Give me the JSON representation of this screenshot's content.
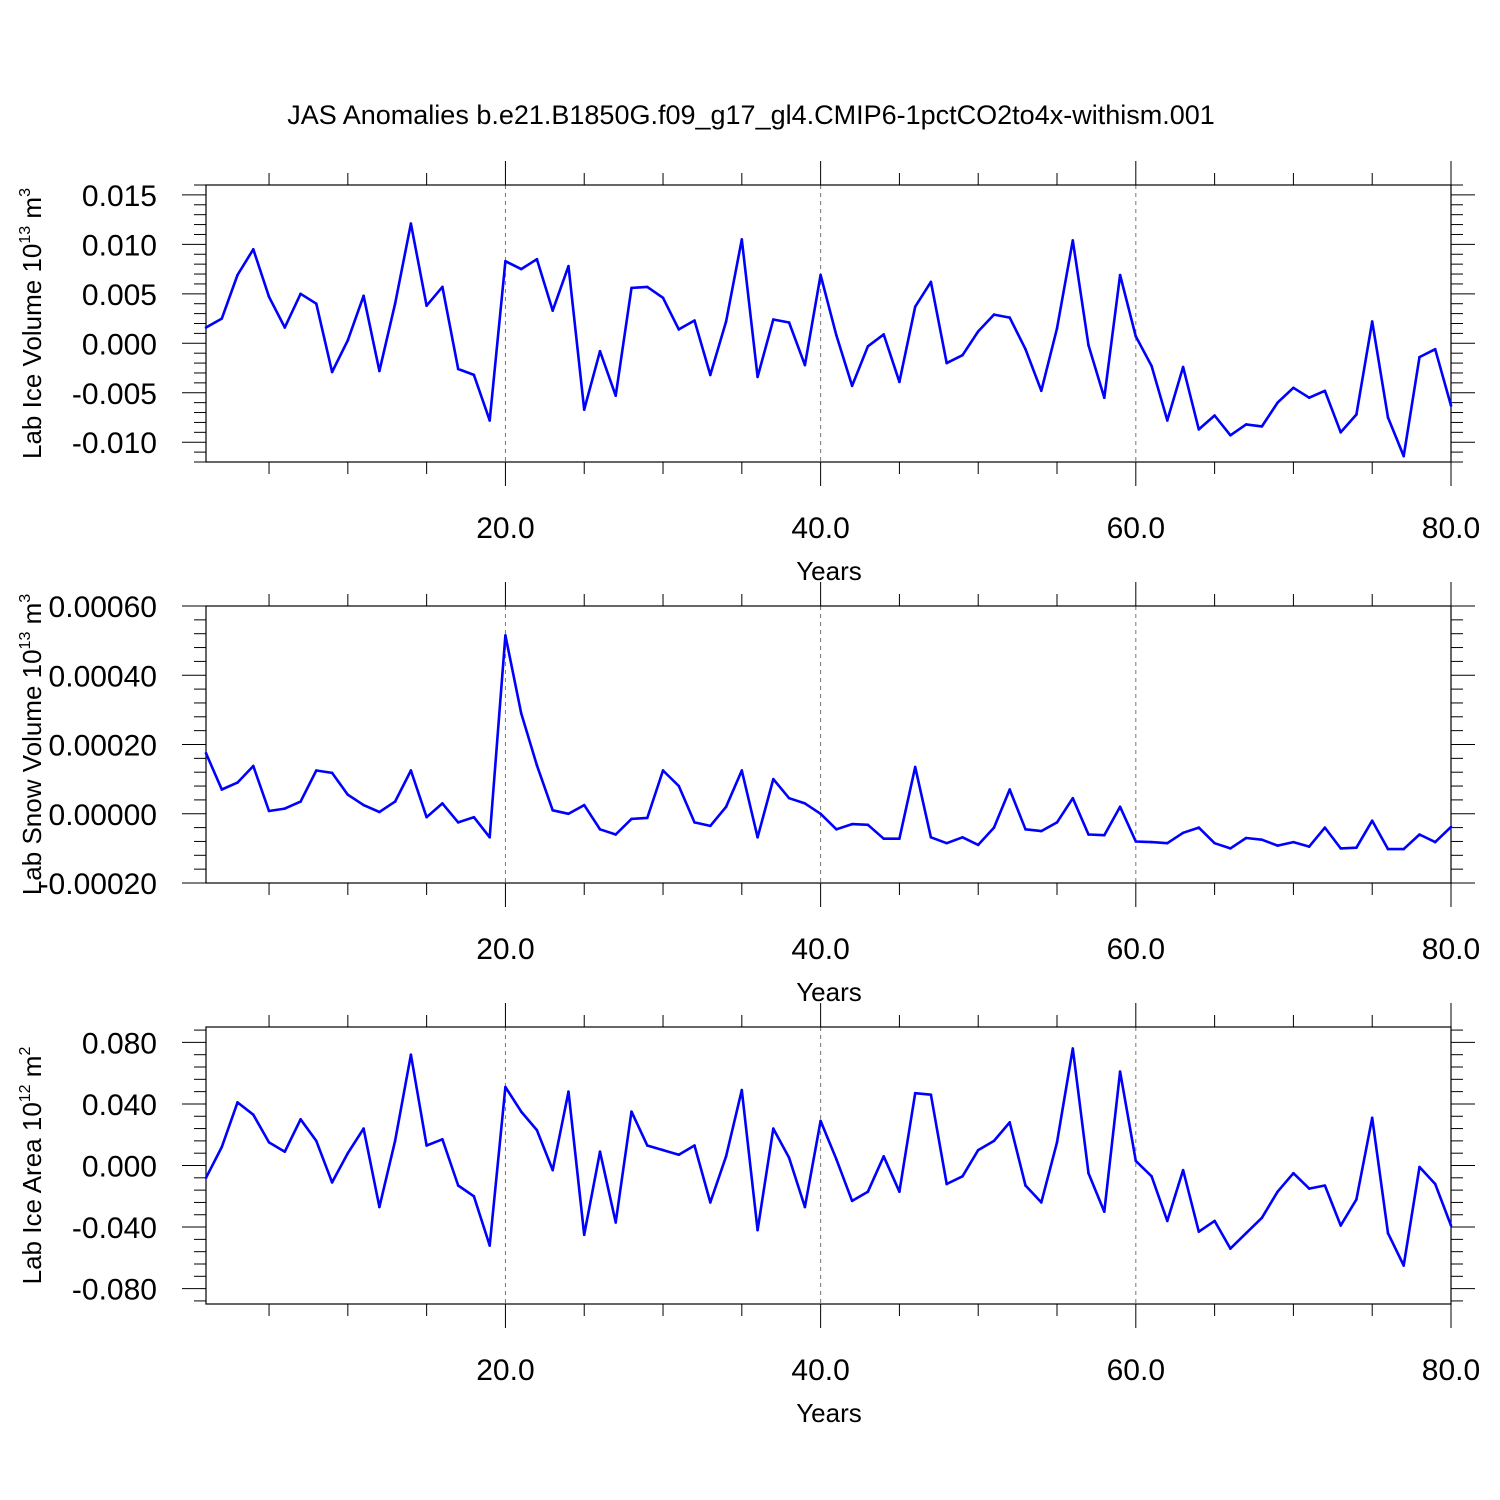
{
  "title": "JAS Anomalies b.e21.B1850G.f09_g17_gl4.CMIP6-1pctCO2to4x-withism.001",
  "chart_data": [
    {
      "type": "line",
      "xlabel": "Years",
      "ylabel": "Lab Ice Volume 10",
      "ylabel_exp": "13",
      "ylabel_unit": " m",
      "ylabel_unit_exp": "3",
      "xlim": [
        1,
        80
      ],
      "ylim": [
        -0.012,
        0.016
      ],
      "xticks": [
        20,
        40,
        60,
        80
      ],
      "xtick_labels": [
        "20.0",
        "40.0",
        "60.0",
        "80.0"
      ],
      "yticks": [
        -0.01,
        -0.005,
        0.0,
        0.005,
        0.01,
        0.015
      ],
      "ytick_labels": [
        "-0.010",
        "-0.005",
        "0.000",
        "0.005",
        "0.010",
        "0.015"
      ],
      "grid": "vertical dashed at major x ticks",
      "line_color": "#0000ff",
      "x": [
        1,
        2,
        3,
        4,
        5,
        6,
        7,
        8,
        9,
        10,
        11,
        12,
        13,
        14,
        15,
        16,
        17,
        18,
        19,
        20,
        21,
        22,
        23,
        24,
        25,
        26,
        27,
        28,
        29,
        30,
        31,
        32,
        33,
        34,
        35,
        36,
        37,
        38,
        39,
        40,
        41,
        42,
        43,
        44,
        45,
        46,
        47,
        48,
        49,
        50,
        51,
        52,
        53,
        54,
        55,
        56,
        57,
        58,
        59,
        60,
        61,
        62,
        63,
        64,
        65,
        66,
        67,
        68,
        69,
        70,
        71,
        72,
        73,
        74,
        75,
        76,
        77,
        78,
        79,
        80
      ],
      "values": [
        0.0016,
        0.0025,
        0.0069,
        0.0095,
        0.0047,
        0.0016,
        0.005,
        0.004,
        -0.0029,
        0.0003,
        0.0048,
        -0.0028,
        0.004,
        0.0121,
        0.0038,
        0.0057,
        -0.0026,
        -0.0032,
        -0.0078,
        0.0083,
        0.0075,
        0.0085,
        0.0033,
        0.0078,
        -0.0067,
        -0.0008,
        -0.0053,
        0.0056,
        0.0057,
        0.0046,
        0.0014,
        0.0023,
        -0.0032,
        0.0022,
        0.0105,
        -0.0034,
        0.0024,
        0.0021,
        -0.0022,
        0.0069,
        0.0008,
        -0.0043,
        -0.0003,
        0.0009,
        -0.0039,
        0.0037,
        0.0062,
        -0.002,
        -0.0012,
        0.0012,
        0.0029,
        0.0026,
        -0.0006,
        -0.0048,
        0.0015,
        0.0104,
        -0.0002,
        -0.0055,
        0.0069,
        0.0007,
        -0.0023,
        -0.0078,
        -0.0024,
        -0.0087,
        -0.0073,
        -0.0093,
        -0.0082,
        -0.0084,
        -0.006,
        -0.0045,
        -0.0055,
        -0.0048,
        -0.009,
        -0.0072,
        0.0022,
        -0.0075,
        -0.0114,
        -0.0014,
        -0.0006,
        -0.0063
      ]
    },
    {
      "type": "line",
      "xlabel": "Years",
      "ylabel": "Lab Snow Volume 10",
      "ylabel_exp": "13",
      "ylabel_unit": " m",
      "ylabel_unit_exp": "3",
      "xlim": [
        1,
        80
      ],
      "ylim": [
        -0.0002,
        0.0006
      ],
      "xticks": [
        20,
        40,
        60,
        80
      ],
      "xtick_labels": [
        "20.0",
        "40.0",
        "60.0",
        "80.0"
      ],
      "yticks": [
        -0.0002,
        0.0,
        0.0002,
        0.0004,
        0.0006
      ],
      "ytick_labels": [
        "-0.00020",
        "0.00000",
        "0.00020",
        "0.00040",
        "0.00060"
      ],
      "grid": "vertical dashed at major x ticks",
      "line_color": "#0000ff",
      "x": [
        1,
        2,
        3,
        4,
        5,
        6,
        7,
        8,
        9,
        10,
        11,
        12,
        13,
        14,
        15,
        16,
        17,
        18,
        19,
        20,
        21,
        22,
        23,
        24,
        25,
        26,
        27,
        28,
        29,
        30,
        31,
        32,
        33,
        34,
        35,
        36,
        37,
        38,
        39,
        40,
        41,
        42,
        43,
        44,
        45,
        46,
        47,
        48,
        49,
        50,
        51,
        52,
        53,
        54,
        55,
        56,
        57,
        58,
        59,
        60,
        61,
        62,
        63,
        64,
        65,
        66,
        67,
        68,
        69,
        70,
        71,
        72,
        73,
        74,
        75,
        76,
        77,
        78,
        79,
        80
      ],
      "values": [
        0.000175,
        7e-05,
        9e-05,
        0.000138,
        8e-06,
        1.5e-05,
        3.5e-05,
        0.000125,
        0.000118,
        5.5e-05,
        2.5e-05,
        5e-06,
        3.5e-05,
        0.000125,
        -1e-05,
        3e-05,
        -2.5e-05,
        -1e-05,
        -6.8e-05,
        0.000515,
        0.00029,
        0.00014,
        1e-05,
        0.0,
        2.5e-05,
        -4.5e-05,
        -6e-05,
        -1.5e-05,
        -1.2e-05,
        0.000125,
        8e-05,
        -2.5e-05,
        -3.5e-05,
        2e-05,
        0.000125,
        -6.8e-05,
        0.0001,
        4.5e-05,
        3e-05,
        0.0,
        -4.5e-05,
        -3e-05,
        -3.2e-05,
        -7.2e-05,
        -7.2e-05,
        0.000135,
        -6.8e-05,
        -8.5e-05,
        -6.8e-05,
        -9e-05,
        -4e-05,
        7e-05,
        -4.5e-05,
        -5e-05,
        -2.5e-05,
        4.5e-05,
        -6e-05,
        -6.2e-05,
        2e-05,
        -8e-05,
        -8.2e-05,
        -8.5e-05,
        -5.5e-05,
        -4e-05,
        -8.5e-05,
        -0.0001,
        -7e-05,
        -7.5e-05,
        -9.2e-05,
        -8.2e-05,
        -9.5e-05,
        -4e-05,
        -0.0001,
        -9.8e-05,
        -2e-05,
        -0.000102,
        -0.000102,
        -6e-05,
        -8.2e-05,
        -3.8e-05
      ]
    },
    {
      "type": "line",
      "xlabel": "Years",
      "ylabel": "Lab Ice Area 10",
      "ylabel_exp": "12",
      "ylabel_unit": " m",
      "ylabel_unit_exp": "2",
      "xlim": [
        1,
        80
      ],
      "ylim": [
        -0.09,
        0.09
      ],
      "xticks": [
        20,
        40,
        60,
        80
      ],
      "xtick_labels": [
        "20.0",
        "40.0",
        "60.0",
        "80.0"
      ],
      "yticks": [
        -0.08,
        -0.04,
        0.0,
        0.04,
        0.08
      ],
      "ytick_labels": [
        "-0.080",
        "-0.040",
        "0.000",
        "0.040",
        "0.080"
      ],
      "grid": "vertical dashed at major x ticks",
      "line_color": "#0000ff",
      "x": [
        1,
        2,
        3,
        4,
        5,
        6,
        7,
        8,
        9,
        10,
        11,
        12,
        13,
        14,
        15,
        16,
        17,
        18,
        19,
        20,
        21,
        22,
        23,
        24,
        25,
        26,
        27,
        28,
        29,
        30,
        31,
        32,
        33,
        34,
        35,
        36,
        37,
        38,
        39,
        40,
        41,
        42,
        43,
        44,
        45,
        46,
        47,
        48,
        49,
        50,
        51,
        52,
        53,
        54,
        55,
        56,
        57,
        58,
        59,
        60,
        61,
        62,
        63,
        64,
        65,
        66,
        67,
        68,
        69,
        70,
        71,
        72,
        73,
        74,
        75,
        76,
        77,
        78,
        79,
        80
      ],
      "values": [
        -0.008,
        0.012,
        0.041,
        0.033,
        0.015,
        0.009,
        0.03,
        0.016,
        -0.011,
        0.008,
        0.024,
        -0.027,
        0.016,
        0.072,
        0.013,
        0.017,
        -0.013,
        -0.02,
        -0.052,
        0.051,
        0.035,
        0.023,
        -0.003,
        0.048,
        -0.045,
        0.009,
        -0.037,
        0.035,
        0.013,
        0.01,
        0.007,
        0.013,
        -0.024,
        0.006,
        0.049,
        -0.042,
        0.024,
        0.005,
        -0.027,
        0.029,
        0.004,
        -0.023,
        -0.017,
        0.006,
        -0.017,
        0.047,
        0.046,
        -0.012,
        -0.007,
        0.01,
        0.016,
        0.028,
        -0.013,
        -0.024,
        0.015,
        0.076,
        -0.005,
        -0.03,
        0.061,
        0.003,
        -0.007,
        -0.036,
        -0.003,
        -0.043,
        -0.036,
        -0.054,
        -0.044,
        -0.034,
        -0.017,
        -0.005,
        -0.015,
        -0.013,
        -0.039,
        -0.022,
        0.031,
        -0.044,
        -0.065,
        -0.001,
        -0.012,
        -0.039
      ]
    }
  ]
}
